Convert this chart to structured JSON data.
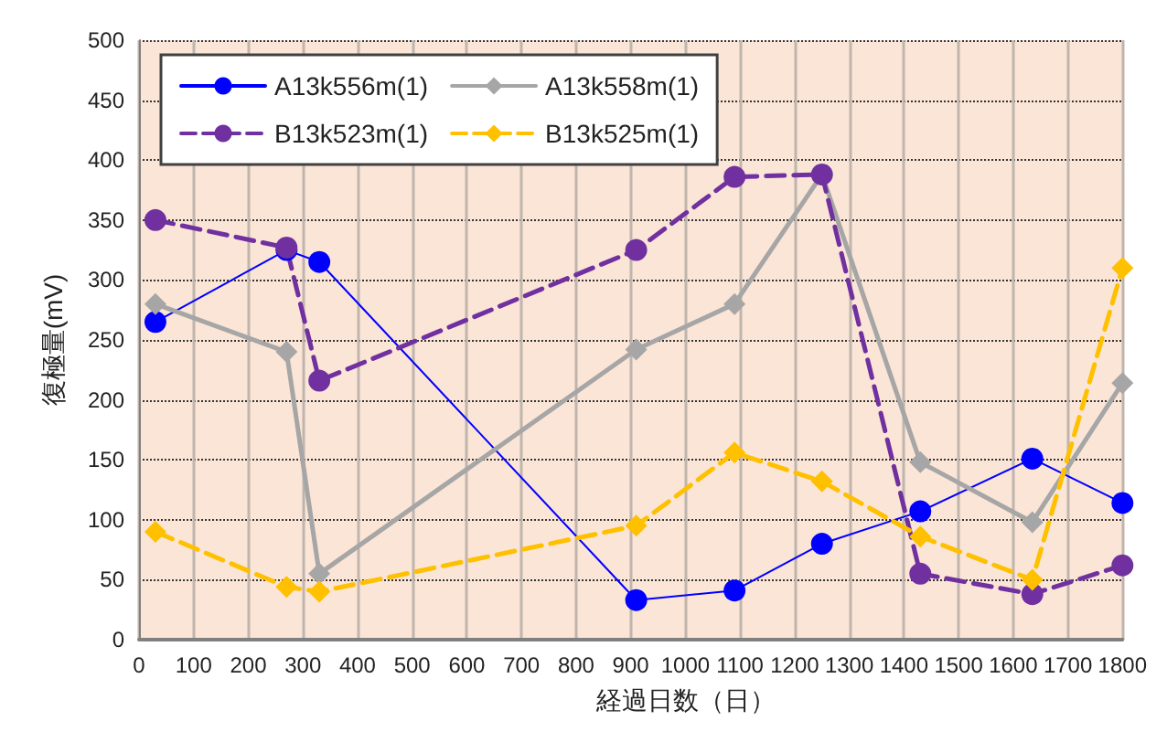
{
  "chart_data": {
    "type": "line",
    "xlabel": "経過日数（日）",
    "ylabel": "復極量(mV)",
    "xlim": [
      0,
      1800
    ],
    "xticks": [
      0,
      100,
      200,
      300,
      400,
      500,
      600,
      700,
      800,
      900,
      1000,
      1100,
      1200,
      1300,
      1400,
      1500,
      1600,
      1700,
      1800
    ],
    "ylim": [
      0,
      500
    ],
    "yticks": [
      0,
      50,
      100,
      150,
      200,
      250,
      300,
      350,
      400,
      450,
      500
    ],
    "grid": true,
    "legend": "top left",
    "series": [
      {
        "name": "A13k556m(1)",
        "color": "#0000ff",
        "marker": "circle",
        "line_style": "solid",
        "x": [
          30,
          270,
          330,
          910,
          1090,
          1250,
          1430,
          1635,
          1800
        ],
        "values": [
          265,
          325,
          315,
          33,
          41,
          80,
          107,
          151,
          114
        ]
      },
      {
        "name": "A13k558m(1)",
        "color": "#a6a6a6",
        "marker": "diamond",
        "line_style": "solid",
        "x": [
          30,
          270,
          330,
          910,
          1090,
          1250,
          1430,
          1635,
          1800
        ],
        "values": [
          280,
          240,
          55,
          242,
          280,
          388,
          148,
          98,
          214
        ]
      },
      {
        "name": "B13k523m(1)",
        "color": "#7030a0",
        "marker": "circle",
        "line_style": "dashed",
        "x": [
          30,
          270,
          330,
          910,
          1090,
          1250,
          1430,
          1635,
          1800
        ],
        "values": [
          350,
          327,
          216,
          325,
          386,
          388,
          55,
          38,
          62
        ]
      },
      {
        "name": "B13k525m(1)",
        "color": "#ffc000",
        "marker": "diamond",
        "line_style": "dashed",
        "x": [
          30,
          270,
          330,
          910,
          1090,
          1250,
          1430,
          1635,
          1800
        ],
        "values": [
          90,
          44,
          40,
          95,
          156,
          132,
          86,
          50,
          310
        ]
      }
    ]
  }
}
